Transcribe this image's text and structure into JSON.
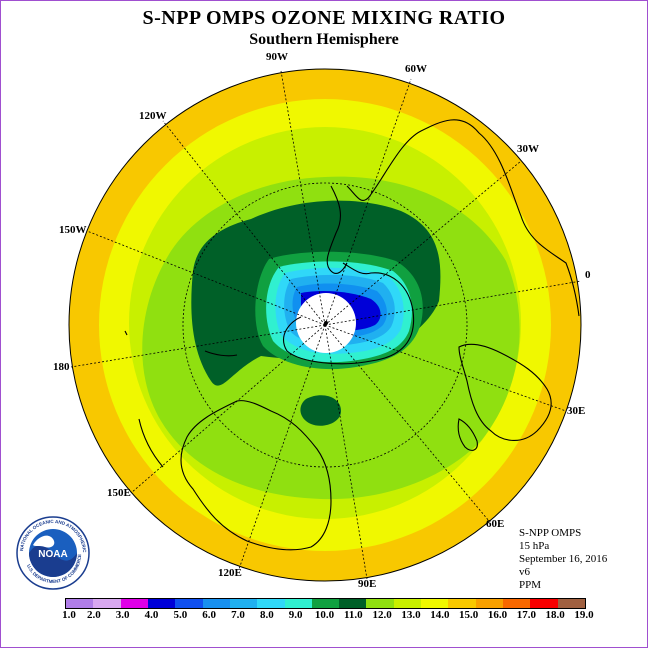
{
  "title": "S-NPP OMPS OZONE MIXING RATIO",
  "subtitle": "Southern Hemisphere",
  "longitude_labels": {
    "w90": "90W",
    "w60": "60W",
    "w30": "30W",
    "lon0": "0",
    "e30": "30E",
    "e60": "60E",
    "e90": "90E",
    "e120": "120E",
    "e150": "150E",
    "lon180": "180",
    "w150": "150W",
    "w120": "120W"
  },
  "info": {
    "instrument": "S-NPP OMPS",
    "level": "15 hPa",
    "date": "September 16, 2016",
    "version": "v6",
    "units": "PPM"
  },
  "logo": {
    "text": "NOAA",
    "ring_text": "NATIONAL OCEANIC AND ATMOSPHERIC ADMINISTRATION",
    "ring_text_bottom": "U.S. DEPARTMENT OF COMMERCE"
  },
  "colorbar": {
    "ticks": [
      "1.0",
      "2.0",
      "3.0",
      "4.0",
      "5.0",
      "6.0",
      "7.0",
      "8.0",
      "9.0",
      "10.0",
      "11.0",
      "12.0",
      "13.0",
      "14.0",
      "15.0",
      "16.0",
      "17.0",
      "18.0",
      "19.0"
    ],
    "colors": [
      "#b07ee8",
      "#d8a8f0",
      "#e000e8",
      "#0000d8",
      "#1050f0",
      "#1890f0",
      "#20b0f0",
      "#30d8f8",
      "#30f0d0",
      "#10a040",
      "#006028",
      "#90e010",
      "#c8f000",
      "#f0f800",
      "#f8c800",
      "#f8a000",
      "#f86800",
      "#f80000",
      "#a06040"
    ]
  },
  "map_colors": {
    "outer": "#f8c800",
    "yellow": "#f0f800",
    "lime": "#c8f000",
    "green_light": "#90e010",
    "green_dark": "#006028",
    "green_mid": "#10a040",
    "cyan": "#30f0d0",
    "cyan_light": "#30d8f8",
    "blue_light": "#20b0f0",
    "blue_mid": "#1090f0",
    "blue_dark": "#0000d8",
    "pole": "#ffffff"
  }
}
